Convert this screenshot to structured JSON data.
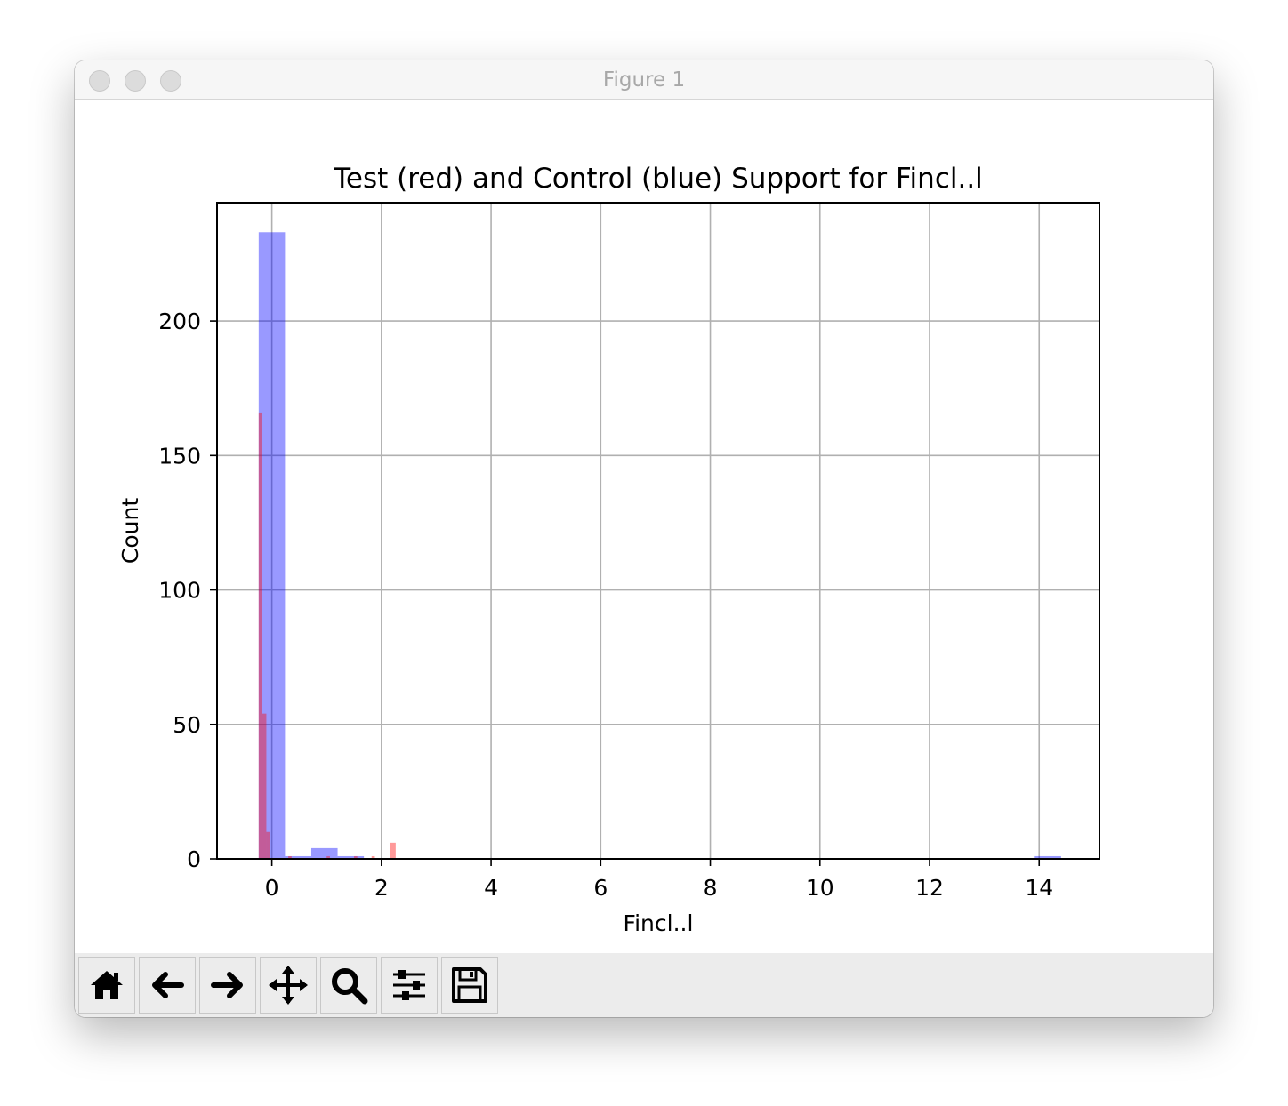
{
  "window": {
    "title": "Figure 1"
  },
  "toolbar": {
    "buttons": [
      {
        "name": "home-button",
        "icon": "home-icon"
      },
      {
        "name": "back-button",
        "icon": "arrow-left-icon"
      },
      {
        "name": "forward-button",
        "icon": "arrow-right-icon"
      },
      {
        "name": "pan-button",
        "icon": "move-icon"
      },
      {
        "name": "zoom-button",
        "icon": "search-icon"
      },
      {
        "name": "configure-subplots-button",
        "icon": "sliders-icon"
      },
      {
        "name": "save-button",
        "icon": "floppy-disk-icon"
      }
    ]
  },
  "chart_data": {
    "type": "bar",
    "title": "Test (red) and Control (blue) Support for Fincl..l",
    "xlabel": "Fincl..l",
    "ylabel": "Count",
    "xlim": [
      -1.0,
      15.1
    ],
    "ylim": [
      0,
      244
    ],
    "xticks": [
      0,
      2,
      4,
      6,
      8,
      10,
      12,
      14
    ],
    "yticks": [
      0,
      50,
      100,
      150,
      200
    ],
    "grid": true,
    "colors": {
      "test": "#ff0000",
      "control": "#0000ff"
    },
    "bar_alpha": 0.4,
    "series": [
      {
        "name": "Control",
        "color": "#0000ff",
        "bins": [
          {
            "x0": -0.24,
            "x1": 0.24,
            "count": 233
          },
          {
            "x0": 0.24,
            "x1": 0.72,
            "count": 1
          },
          {
            "x0": 0.72,
            "x1": 1.2,
            "count": 4
          },
          {
            "x0": 1.2,
            "x1": 1.68,
            "count": 1
          },
          {
            "x0": 13.92,
            "x1": 14.4,
            "count": 1
          }
        ]
      },
      {
        "name": "Test",
        "color": "#ff0000",
        "bins": [
          {
            "x0": -0.24,
            "x1": -0.18,
            "count": 166
          },
          {
            "x0": -0.18,
            "x1": -0.1,
            "count": 54
          },
          {
            "x0": -0.1,
            "x1": -0.04,
            "count": 10
          },
          {
            "x0": 0.3,
            "x1": 0.36,
            "count": 1
          },
          {
            "x0": 1.0,
            "x1": 1.06,
            "count": 1
          },
          {
            "x0": 1.5,
            "x1": 1.56,
            "count": 1
          },
          {
            "x0": 1.82,
            "x1": 1.88,
            "count": 1
          },
          {
            "x0": 2.16,
            "x1": 2.26,
            "count": 6
          }
        ]
      }
    ]
  }
}
